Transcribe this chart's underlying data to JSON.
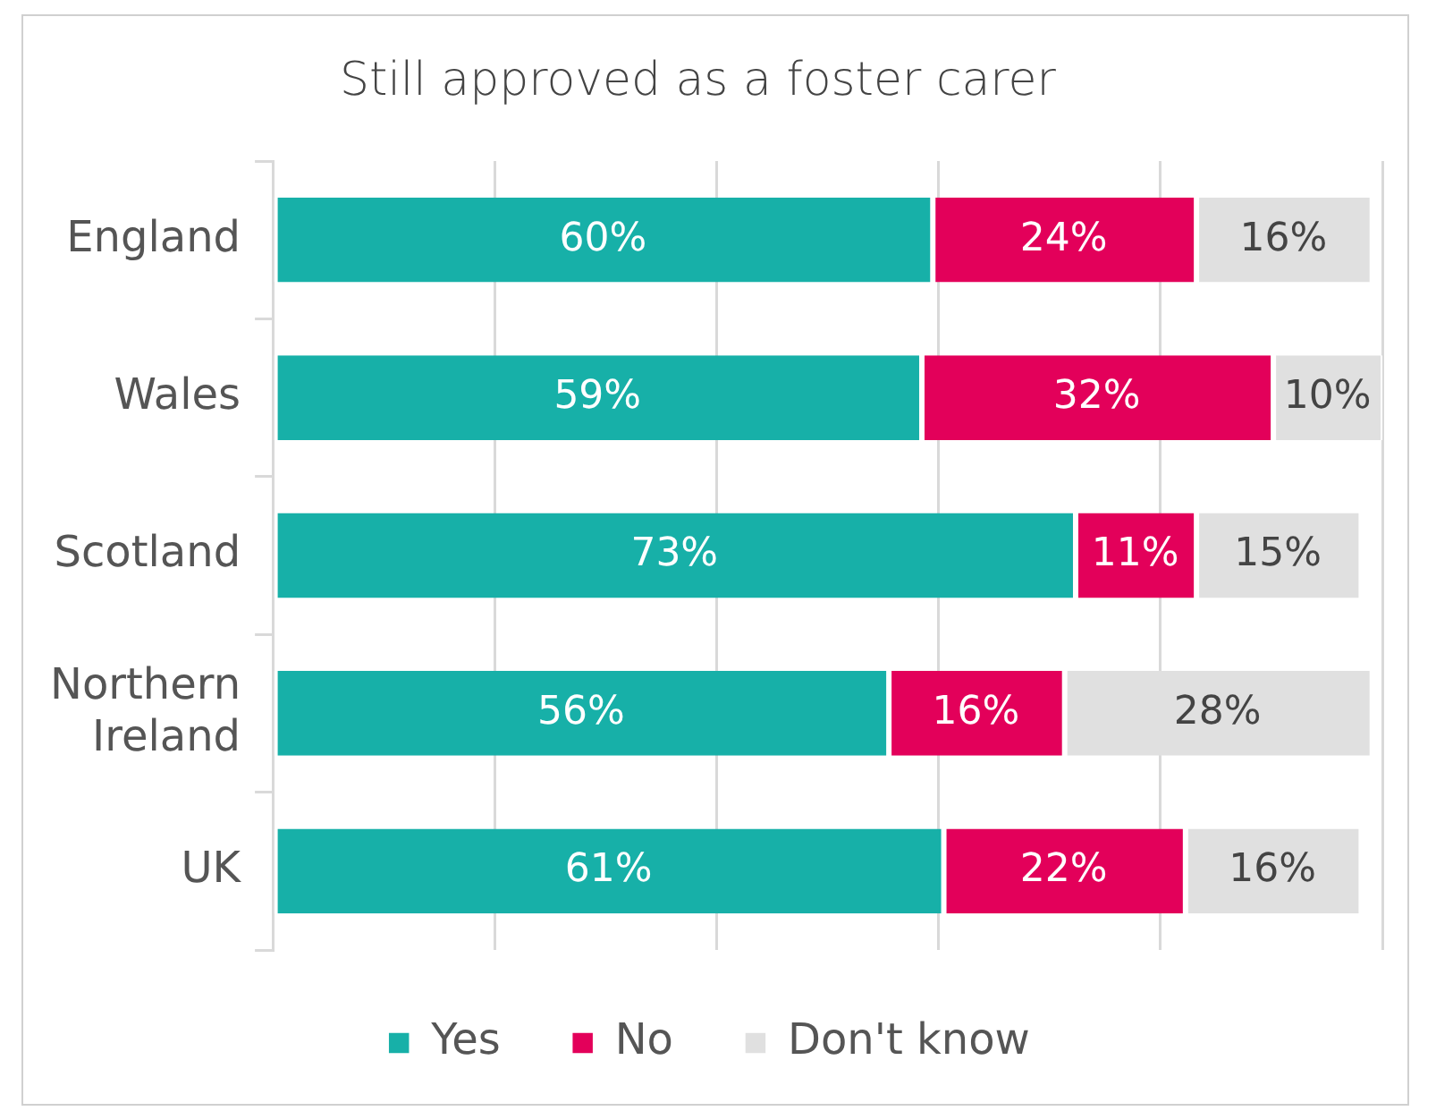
{
  "chart_data": {
    "type": "bar",
    "title": "Still approved as a foster carer",
    "orientation": "horizontal",
    "stacked": true,
    "categories": [
      "England",
      "Wales",
      "Scotland",
      "Northern Ireland",
      "UK"
    ],
    "series": [
      {
        "name": "Yes",
        "color": "#17b0a8",
        "values": [
          60,
          59,
          73,
          56,
          61
        ],
        "value_labels": [
          "60%",
          "59%",
          "73%",
          "56%",
          "61%"
        ]
      },
      {
        "name": "No",
        "color": "#e3005a",
        "values": [
          24,
          32,
          11,
          16,
          22
        ],
        "value_labels": [
          "24%",
          "32%",
          "11%",
          "16%",
          "22%"
        ]
      },
      {
        "name": "Don't know",
        "color": "#e0e0e0",
        "values": [
          16,
          10,
          15,
          28,
          16
        ],
        "value_labels": [
          "16%",
          "10%",
          "15%",
          "28%",
          "16%"
        ]
      }
    ],
    "grid": "x",
    "legend": "bottom",
    "tick_labels": "y"
  }
}
